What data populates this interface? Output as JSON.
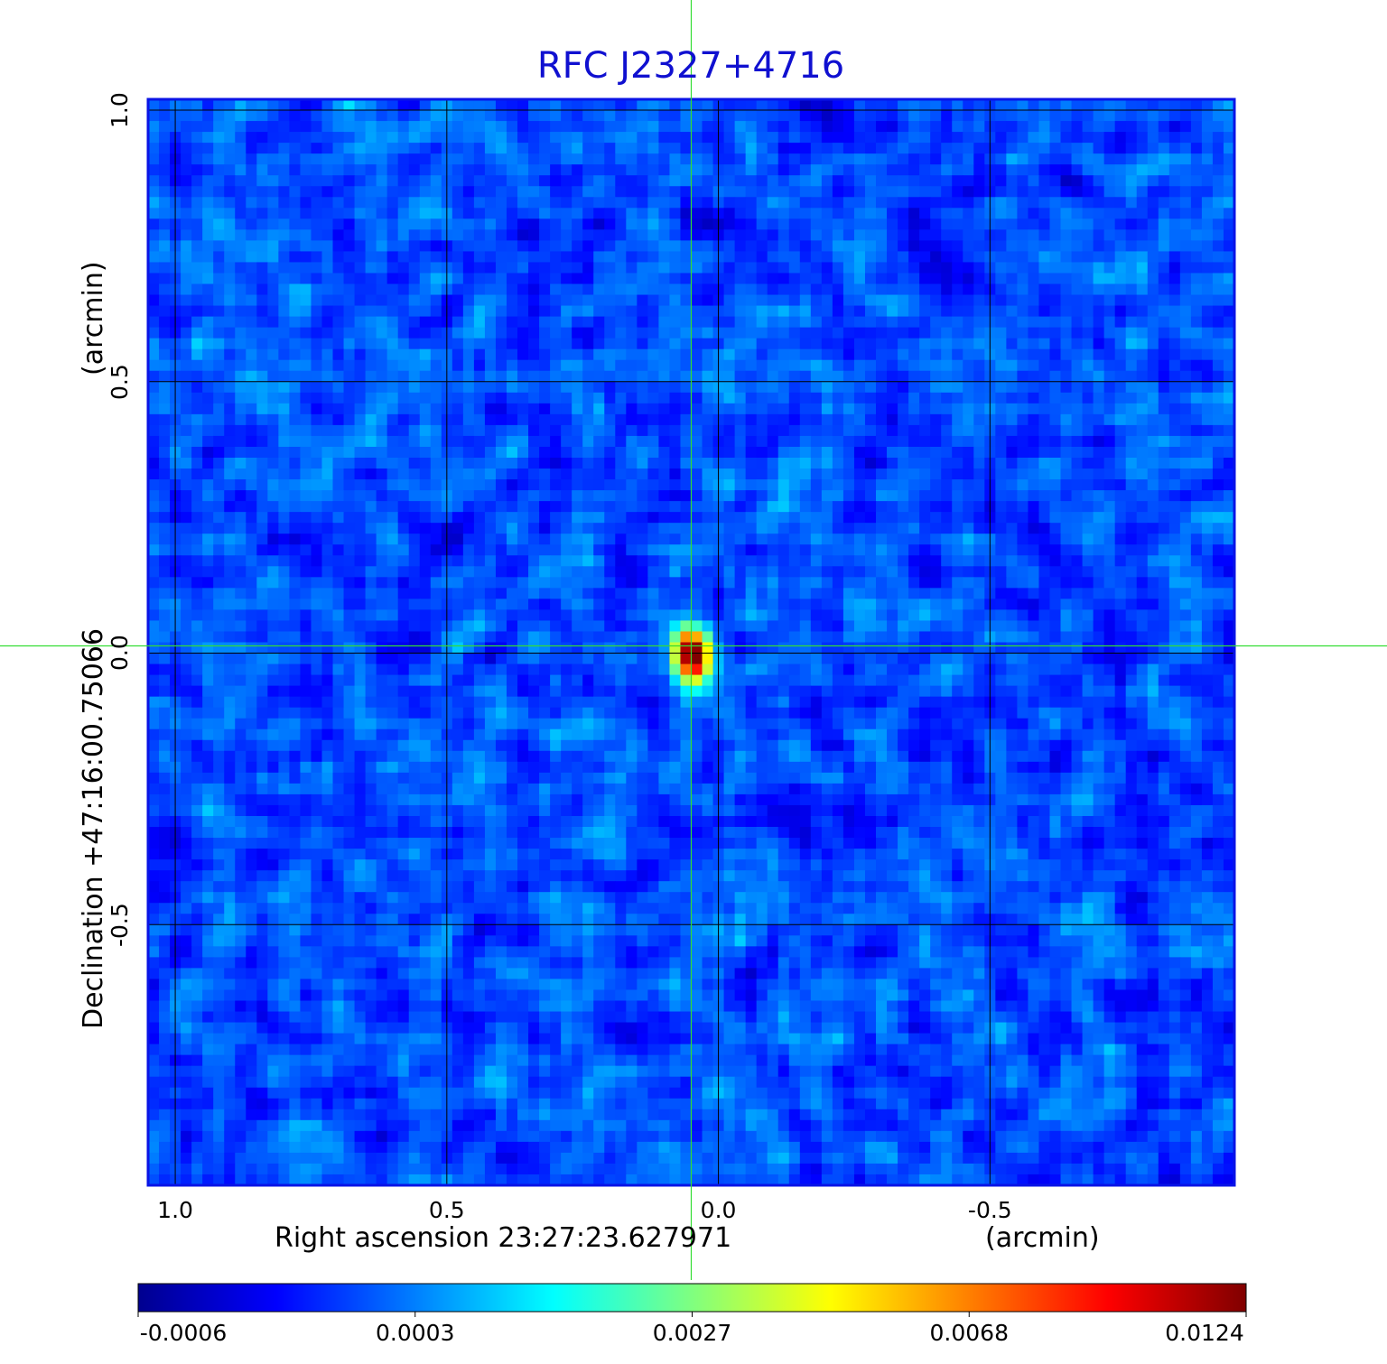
{
  "chart_data": {
    "type": "heatmap",
    "title": "RFC J2327+4716",
    "xlabel": "Right ascension  23:27:23.627971",
    "xlabel_unit": "(arcmin)",
    "ylabel": "Declination  +47:16:00.75066",
    "ylabel_unit": "(arcmin)",
    "x_ticks": [
      {
        "value": 1.0,
        "label": "1.0"
      },
      {
        "value": 0.5,
        "label": "0.5"
      },
      {
        "value": 0.0,
        "label": "0.0"
      },
      {
        "value": -0.5,
        "label": "-0.5"
      }
    ],
    "y_ticks": [
      {
        "value": 1.0,
        "label": "1.0"
      },
      {
        "value": 0.5,
        "label": "0.5"
      },
      {
        "value": 0.0,
        "label": "0.0"
      },
      {
        "value": -0.5,
        "label": "-0.5"
      }
    ],
    "xlim": [
      1.05,
      -0.95
    ],
    "ylim": [
      -0.98,
      1.02
    ],
    "x_reversed": true,
    "grid": true,
    "crosshair": {
      "x": 0.05,
      "y": 0.0
    },
    "colormap": "jet",
    "colorbar": {
      "ticks": [
        "-0.0006",
        "0.0003",
        "0.0027",
        "0.0068",
        "0.0124"
      ],
      "min": -0.0006,
      "max": 0.0124
    },
    "source": {
      "x": 0.05,
      "y": 0.0,
      "peak": 0.0124
    },
    "background_level": 0.0
  },
  "colors": {
    "title": "#1010d0",
    "frame": "#0a14e6",
    "grid": "#000000",
    "crosshair": "#33dd33"
  }
}
